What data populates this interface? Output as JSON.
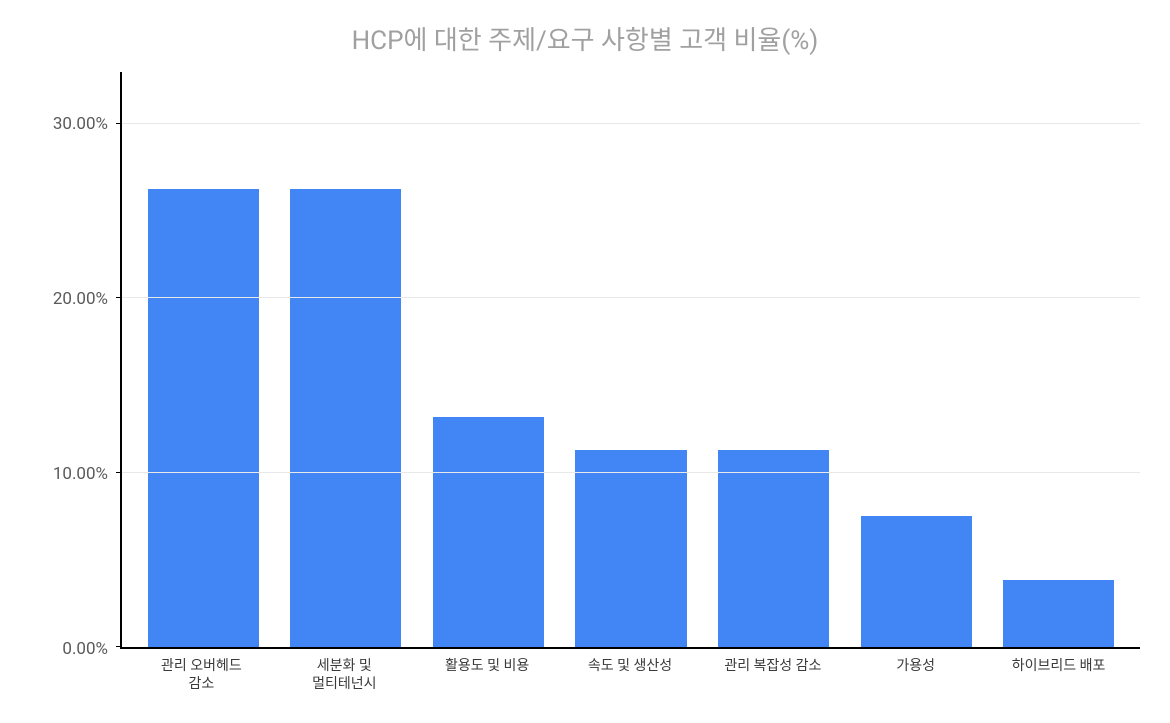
{
  "chart": {
    "type": "bar",
    "title": "HCP에 대한 주제/요구 사항별 고객 비율(%)",
    "title_color": "#a0a0a0",
    "title_fontsize": 26,
    "bar_color": "#4285f4",
    "background_color": "#ffffff",
    "grid_color": "#e8e8e8",
    "axis_color": "#000000",
    "text_color": "#3a3a3a",
    "ymin": 0,
    "ymax": 33,
    "bar_width_ratio": 0.78,
    "y_ticks": [
      {
        "value": 0,
        "label": "0.00%"
      },
      {
        "value": 10,
        "label": "10.00%"
      },
      {
        "value": 20,
        "label": "20.00%"
      },
      {
        "value": 30,
        "label": "30.00%"
      }
    ],
    "categories": [
      {
        "label": "관리 오버헤드\n감소",
        "value": 26.3
      },
      {
        "label": "세분화 및\n멀티테넌시",
        "value": 26.3
      },
      {
        "label": "활용도 및 비용",
        "value": 13.2
      },
      {
        "label": "속도 및 생산성",
        "value": 11.3
      },
      {
        "label": "관리 복잡성 감소",
        "value": 11.3
      },
      {
        "label": "가용성",
        "value": 7.5
      },
      {
        "label": "하이브리드 배포",
        "value": 3.8
      }
    ]
  }
}
